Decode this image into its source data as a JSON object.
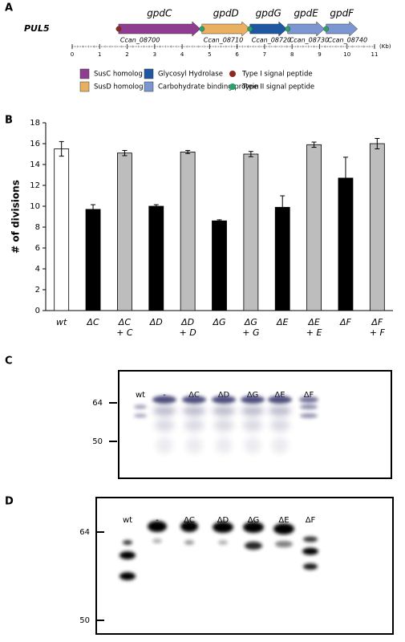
{
  "panel_a": {
    "label": "A",
    "locus": "PUL5",
    "genes": [
      {
        "name": "gpdC",
        "locus_tag": "Ccan_08700",
        "start": 1.69,
        "end": 4.66,
        "color": "#8e3d91",
        "signal_color": "#8b2a1e"
      },
      {
        "name": "gpdD",
        "locus_tag": "Ccan_08710",
        "start": 4.72,
        "end": 6.47,
        "color": "#e8b060",
        "signal_color": "#2aa36a"
      },
      {
        "name": "gpdG",
        "locus_tag": "Ccan_08720",
        "start": 6.47,
        "end": 7.81,
        "color": "#1f57a3",
        "signal_color": "#2aa36a"
      },
      {
        "name": "gpdE",
        "locus_tag": "Ccan_08730",
        "start": 7.84,
        "end": 9.18,
        "color": "#7b96d0",
        "signal_color": "#2aa36a"
      },
      {
        "name": "gpdF",
        "locus_tag": "Ccan_08740",
        "start": 9.24,
        "end": 10.38,
        "color": "#7b96d0",
        "signal_color": "#2aa36a"
      }
    ],
    "xlim": [
      0,
      11
    ],
    "xticks": [
      0,
      1,
      2,
      3,
      4,
      5,
      6,
      7,
      8,
      9,
      10,
      11
    ],
    "unit": "(Kb)",
    "legend": [
      {
        "label": "SusC homolog",
        "color": "#8e3d91",
        "shape": "square"
      },
      {
        "label": "SusD homolog",
        "color": "#e8b060",
        "shape": "square"
      },
      {
        "label": "Glycosyl Hydrolase",
        "color": "#1f57a3",
        "shape": "square"
      },
      {
        "label": "Carbohydrate binding protein",
        "color": "#7b96d0",
        "shape": "square"
      },
      {
        "label": "Type I signal peptide",
        "color": "#8b2a1e",
        "shape": "circle"
      },
      {
        "label": "Type II signal peptide",
        "color": "#2aa36a",
        "shape": "circle"
      }
    ]
  },
  "chart_data": {
    "type": "bar",
    "panel_label": "B",
    "y_label": "# of divisions",
    "categories": [
      [
        "wt"
      ],
      [
        "ΔC"
      ],
      [
        "ΔC",
        "+ C"
      ],
      [
        "ΔD"
      ],
      [
        "ΔD",
        "+ D"
      ],
      [
        "ΔG"
      ],
      [
        "ΔG",
        "+ G"
      ],
      [
        "ΔE"
      ],
      [
        "ΔE",
        "+ E"
      ],
      [
        "ΔF"
      ],
      [
        "ΔF",
        "+ F"
      ]
    ],
    "values": [
      15.5,
      9.7,
      15.1,
      10.0,
      15.2,
      8.6,
      15.0,
      9.9,
      15.9,
      12.7,
      16.0
    ],
    "errors": [
      0.7,
      0.45,
      0.25,
      0.15,
      0.15,
      0.1,
      0.25,
      1.1,
      0.25,
      2.0,
      0.5
    ],
    "colors": [
      "#ffffff",
      "#000000",
      "#bdbdbd",
      "#000000",
      "#bdbdbd",
      "#000000",
      "#bdbdbd",
      "#000000",
      "#bdbdbd",
      "#000000",
      "#bdbdbd"
    ],
    "ylim": [
      0,
      18
    ],
    "yticks": [
      0,
      2,
      4,
      6,
      8,
      10,
      12,
      14,
      16,
      18
    ]
  },
  "panel_c": {
    "label": "C",
    "lanes": [
      "wt",
      "-",
      "ΔC",
      "ΔD",
      "ΔG",
      "ΔE",
      "ΔF"
    ],
    "markers": [
      64,
      50
    ]
  },
  "panel_d": {
    "label": "D",
    "lanes": [
      "wt",
      "-",
      "ΔC",
      "ΔD",
      "ΔG",
      "ΔE",
      "ΔF"
    ],
    "markers": [
      64,
      50
    ]
  }
}
